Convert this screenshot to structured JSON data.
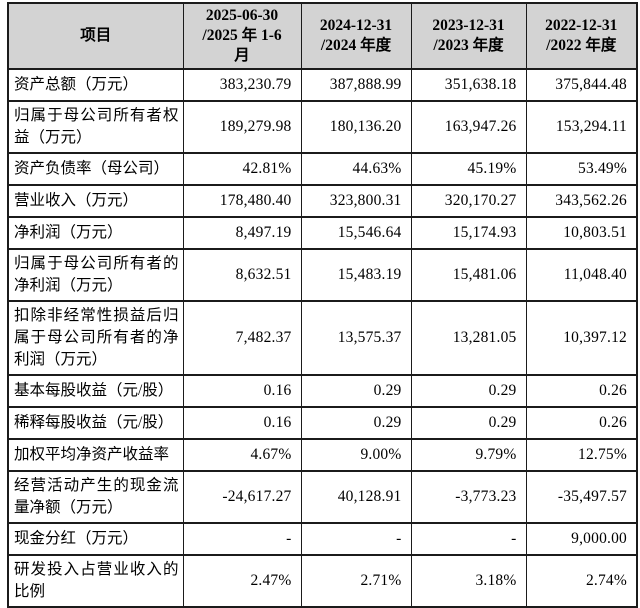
{
  "table": {
    "header_bg": "#d3d3d3",
    "border_color": "#1b1b1b",
    "headers": {
      "item": "项目",
      "p2025": "2025-06-30\n/2025 年 1-6\n月",
      "p2024": "2024-12-31\n/2024 年度",
      "p2023": "2023-12-31\n/2023 年度",
      "p2022": "2022-12-31\n/2022 年度"
    },
    "rows": [
      {
        "label": "资产总额（万元）",
        "values": [
          "383,230.79",
          "387,888.99",
          "351,638.18",
          "375,844.48"
        ]
      },
      {
        "label": "归属于母公司所有者权益（万元）",
        "values": [
          "189,279.98",
          "180,136.20",
          "163,947.26",
          "153,294.11"
        ]
      },
      {
        "label": "资产负债率（母公司）",
        "values": [
          "42.81%",
          "44.63%",
          "45.19%",
          "53.49%"
        ]
      },
      {
        "label": "营业收入（万元）",
        "values": [
          "178,480.40",
          "323,800.31",
          "320,170.27",
          "343,562.26"
        ]
      },
      {
        "label": "净利润（万元）",
        "values": [
          "8,497.19",
          "15,546.64",
          "15,174.93",
          "10,803.51"
        ]
      },
      {
        "label": "归属于母公司所有者的净利润（万元）",
        "values": [
          "8,632.51",
          "15,483.19",
          "15,481.06",
          "11,048.40"
        ]
      },
      {
        "label": "扣除非经常性损益后归属于母公司所有者的净利润（万元）",
        "values": [
          "7,482.37",
          "13,575.37",
          "13,281.05",
          "10,397.12"
        ]
      },
      {
        "label": "基本每股收益（元/股）",
        "values": [
          "0.16",
          "0.29",
          "0.29",
          "0.26"
        ]
      },
      {
        "label": "稀释每股收益（元/股）",
        "values": [
          "0.16",
          "0.29",
          "0.29",
          "0.26"
        ]
      },
      {
        "label": "加权平均净资产收益率",
        "values": [
          "4.67%",
          "9.00%",
          "9.79%",
          "12.75%"
        ]
      },
      {
        "label": "经营活动产生的现金流量净额（万元）",
        "values": [
          "-24,617.27",
          "40,128.91",
          "-3,773.23",
          "-35,497.57"
        ]
      },
      {
        "label": "现金分红（万元）",
        "values": [
          "-",
          "-",
          "-",
          "9,000.00"
        ]
      },
      {
        "label": "研发投入占营业收入的比例",
        "values": [
          "2.47%",
          "2.71%",
          "3.18%",
          "2.74%"
        ]
      }
    ]
  }
}
